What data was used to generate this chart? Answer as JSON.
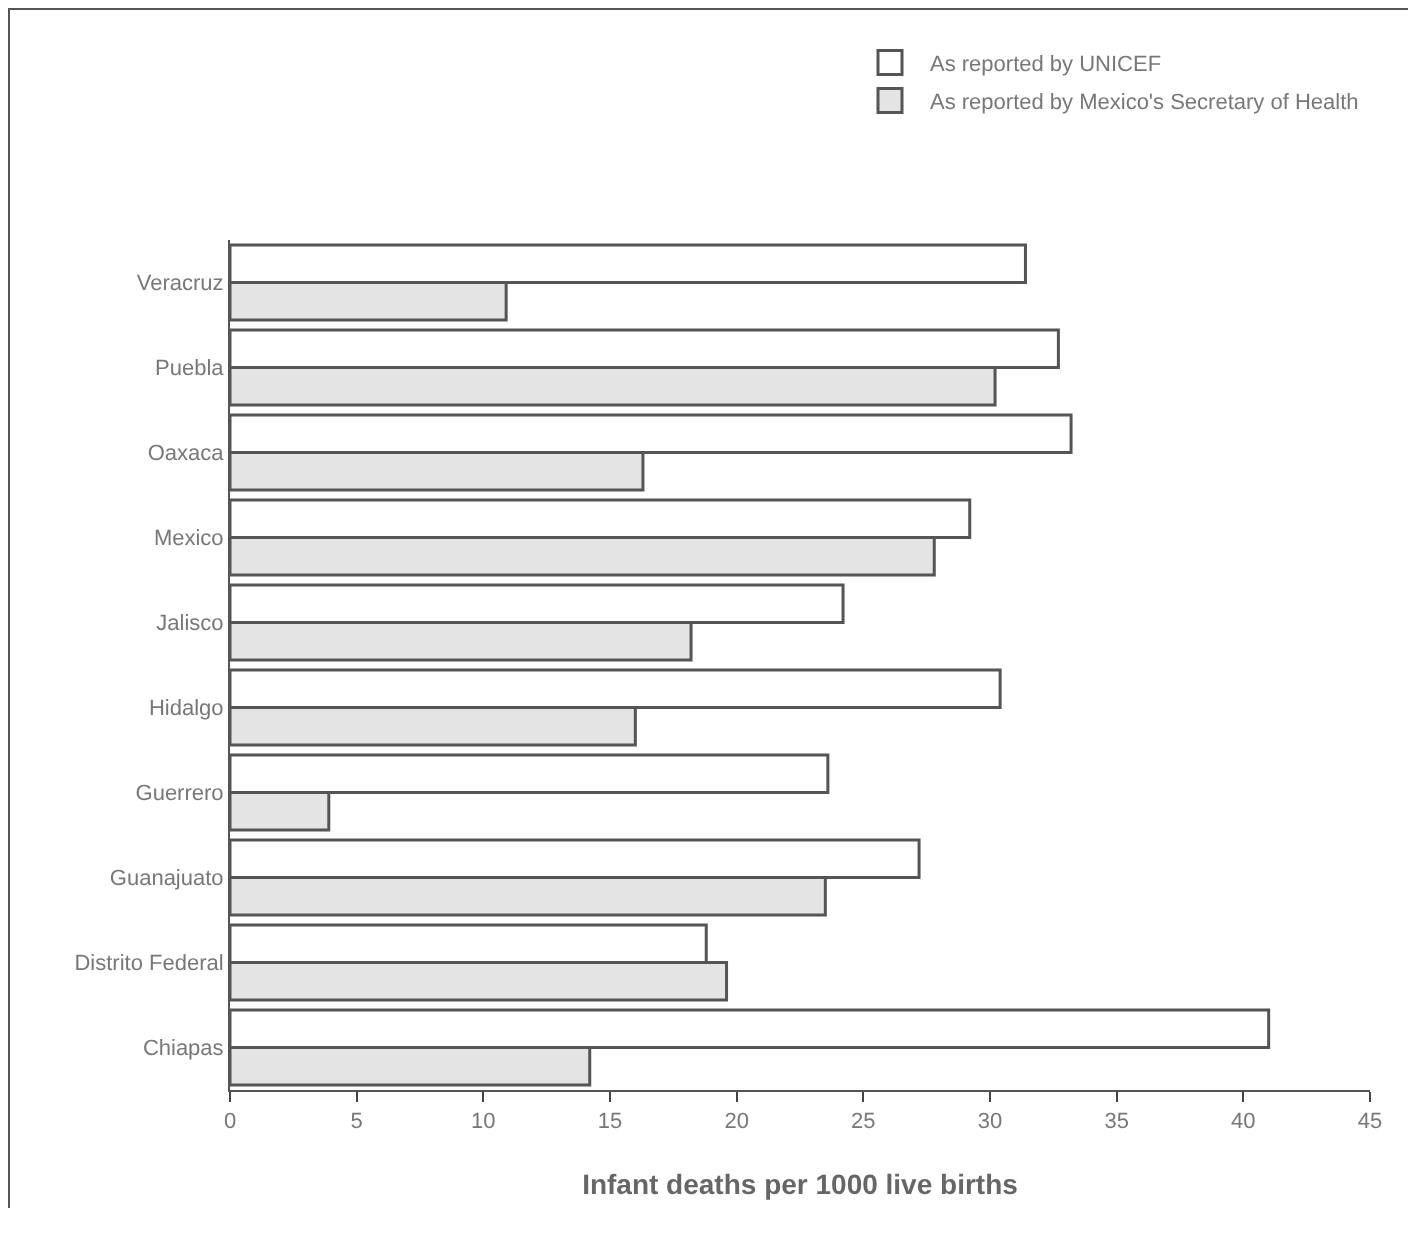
{
  "chart_data": {
    "type": "bar",
    "orientation": "horizontal",
    "xlabel": "Infant deaths per 1000 live births",
    "categories": [
      "Veracruz",
      "Puebla",
      "Oaxaca",
      "Mexico",
      "Jalisco",
      "Hidalgo",
      "Guerrero",
      "Guanajuato",
      "Distrito Federal",
      "Chiapas"
    ],
    "series": [
      {
        "name": "As reported by UNICEF",
        "color": "#ffffff",
        "values": [
          31.4,
          32.7,
          33.2,
          29.2,
          24.2,
          30.4,
          23.6,
          27.2,
          18.8,
          41.0
        ]
      },
      {
        "name": "As reported by Mexico's Secretary of Health",
        "color": "#e4e4e4",
        "values": [
          10.9,
          30.2,
          16.3,
          27.8,
          18.2,
          16.0,
          3.9,
          23.5,
          19.6,
          14.2
        ]
      }
    ],
    "xlim": [
      0,
      45
    ],
    "xticks": [
      0,
      5,
      10,
      15,
      20,
      25,
      30,
      35,
      40,
      45
    ],
    "grid": false,
    "legend": "top right"
  }
}
